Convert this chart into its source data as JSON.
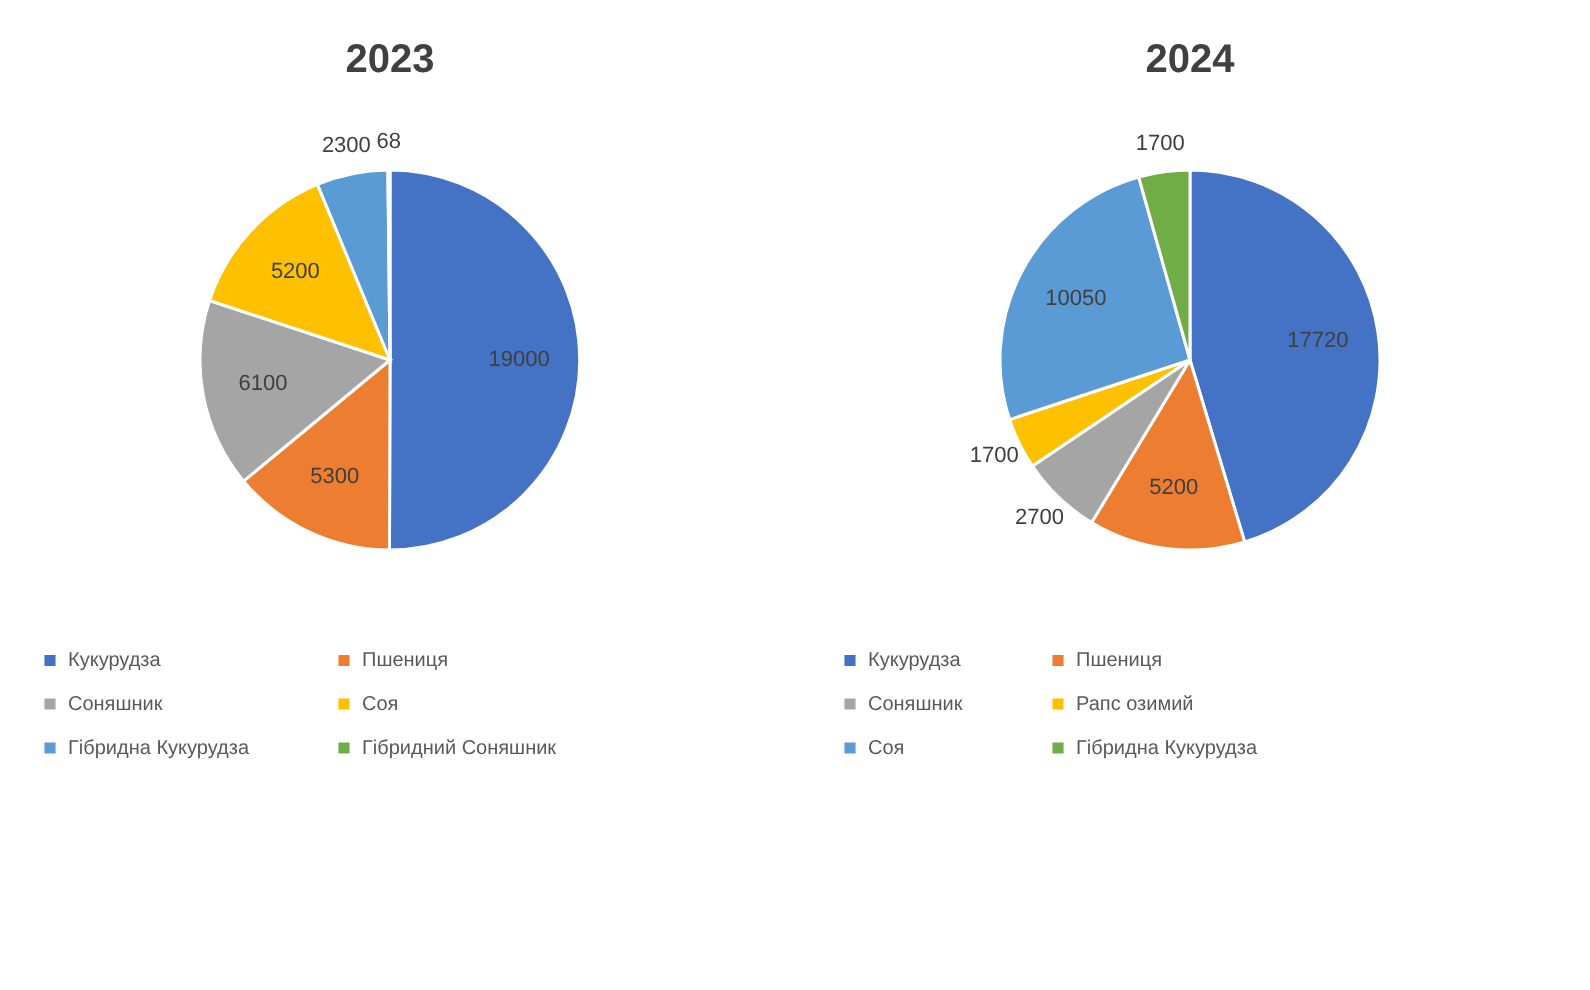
{
  "chart_data": [
    {
      "type": "pie",
      "title": "2023",
      "categories": [
        "Кукурудза",
        "Пшениця",
        "Соняшник",
        "Соя",
        "Гібридна Кукурудза",
        "Гібридний Соняшник"
      ],
      "values": [
        19000,
        5300,
        6100,
        5200,
        2300,
        68
      ],
      "colors": [
        "#4472c4",
        "#ed7d31",
        "#a5a5a5",
        "#ffc000",
        "#5b9bd5",
        "#70ad47"
      ],
      "data_labels": true,
      "legend": "bottom"
    },
    {
      "type": "pie",
      "title": "2024",
      "categories": [
        "Кукурудза",
        "Пшениця",
        "Соняшник",
        "Рапс озимий",
        "Соя",
        "Гібридна Кукурудза"
      ],
      "values": [
        17720,
        5200,
        2700,
        1700,
        10050,
        1700
      ],
      "colors": [
        "#4472c4",
        "#ed7d31",
        "#a5a5a5",
        "#ffc000",
        "#5b9bd5",
        "#70ad47"
      ],
      "data_labels": true,
      "legend": "bottom"
    }
  ]
}
